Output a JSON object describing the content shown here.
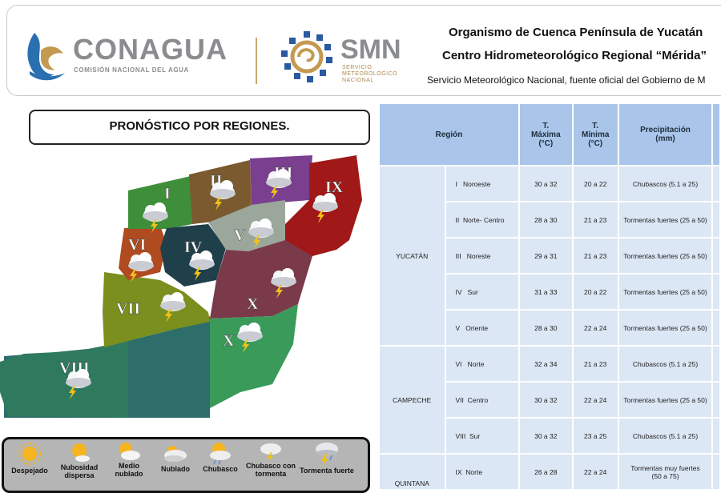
{
  "header": {
    "conagua": {
      "name": "CONAGUA",
      "subtitle": "COMISIÓN NACIONAL DEL AGUA"
    },
    "smn": {
      "name": "SMN",
      "subtitle_lines": [
        "SERVICIO",
        "METEOROLÓGICO",
        "NACIONAL"
      ]
    },
    "org_line1": "Organismo de Cuenca Península de Yucatán",
    "org_line2": "Centro Hidrometeorológico Regional “Mérida”",
    "org_line3": "Servicio Meteorológico Nacional, fuente oficial del Gobierno de M"
  },
  "map_title": "PRONÓSTICO POR REGIONES.",
  "map_regions": [
    "I",
    "II",
    "III",
    "IV",
    "V",
    "VI",
    "VII",
    "VIII",
    "IX",
    "X",
    "X"
  ],
  "region_colors": {
    "I": "#3f8f3a",
    "II": "#7a5a2e",
    "III": "#7a3f8f",
    "IV": "#1f3f4a",
    "V": "#9aa79a",
    "VI": "#b04a20",
    "VII": "#7a8f1e",
    "VIII": "#2f7a5f",
    "IX": "#a01818",
    "X": "#7a3a4a",
    "XI": "#3a9a5a",
    "west": "#2e6e6a"
  },
  "legend": [
    {
      "icon": "sun-icon",
      "label": "Despejado"
    },
    {
      "icon": "sun-cloud-small-icon",
      "label": "Nubosidad dispersa"
    },
    {
      "icon": "partly-cloudy-icon",
      "label": "Medio nublado"
    },
    {
      "icon": "cloudy-icon",
      "label": "Nublado"
    },
    {
      "icon": "shower-icon",
      "label": "Chubasco"
    },
    {
      "icon": "shower-storm-icon",
      "label": "Chubasco con tormenta"
    },
    {
      "icon": "strong-storm-icon",
      "label": "Tormenta fuerte"
    }
  ],
  "table": {
    "headers": {
      "region": "Región",
      "tmax": [
        "T.",
        "Máxima",
        "(°C)"
      ],
      "tmin": [
        "T.",
        "Mínima",
        "(°C)"
      ],
      "precip": [
        "Precipitación",
        "(mm)"
      ]
    },
    "groups": [
      {
        "state": "YUCATÁN",
        "rows": [
          {
            "num": "I",
            "name": "Noroeste",
            "tmax": "30 a 32",
            "tmin": "20 a 22",
            "precip": "Chubascos (5.1 a 25)"
          },
          {
            "num": "II",
            "name": "Norte- Centro",
            "tmax": "28 a 30",
            "tmin": "21 a 23",
            "precip": "Tormentas fuertes (25 a 50)"
          },
          {
            "num": "III",
            "name": "Noreste",
            "tmax": "29 a 31",
            "tmin": "21 a 23",
            "precip": "Tormentas fuertes (25 a 50)"
          },
          {
            "num": "IV",
            "name": "Sur",
            "tmax": "31 a 33",
            "tmin": "20 a 22",
            "precip": "Tormentas fuertes (25 a 50)"
          },
          {
            "num": "V",
            "name": "Oriente",
            "tmax": "28 a 30",
            "tmin": "22 a 24",
            "precip": "Tormentas fuertes (25 a 50)"
          }
        ]
      },
      {
        "state": "CAMPECHE",
        "rows": [
          {
            "num": "VI",
            "name": "Norte",
            "tmax": "32 a 34",
            "tmin": "21 a 23",
            "precip": "Chubascos (5.1 a 25)"
          },
          {
            "num": "VII",
            "name": "Centro",
            "tmax": "30 a 32",
            "tmin": "22 a 24",
            "precip": "Tormentas fuertes (25 a 50)"
          },
          {
            "num": "VIII",
            "name": "Sur",
            "tmax": "30 a 32",
            "tmin": "23 a 25",
            "precip": "Chubascos (5.1 a 25)"
          }
        ]
      },
      {
        "state": "QUINTANA",
        "rows": [
          {
            "num": "IX",
            "name": "Norte",
            "tmax": "26 a 28",
            "tmin": "22 a 24",
            "precip_lines": [
              "Tormentas muy fuertes",
              "(50 a 75)"
            ]
          }
        ]
      }
    ]
  }
}
